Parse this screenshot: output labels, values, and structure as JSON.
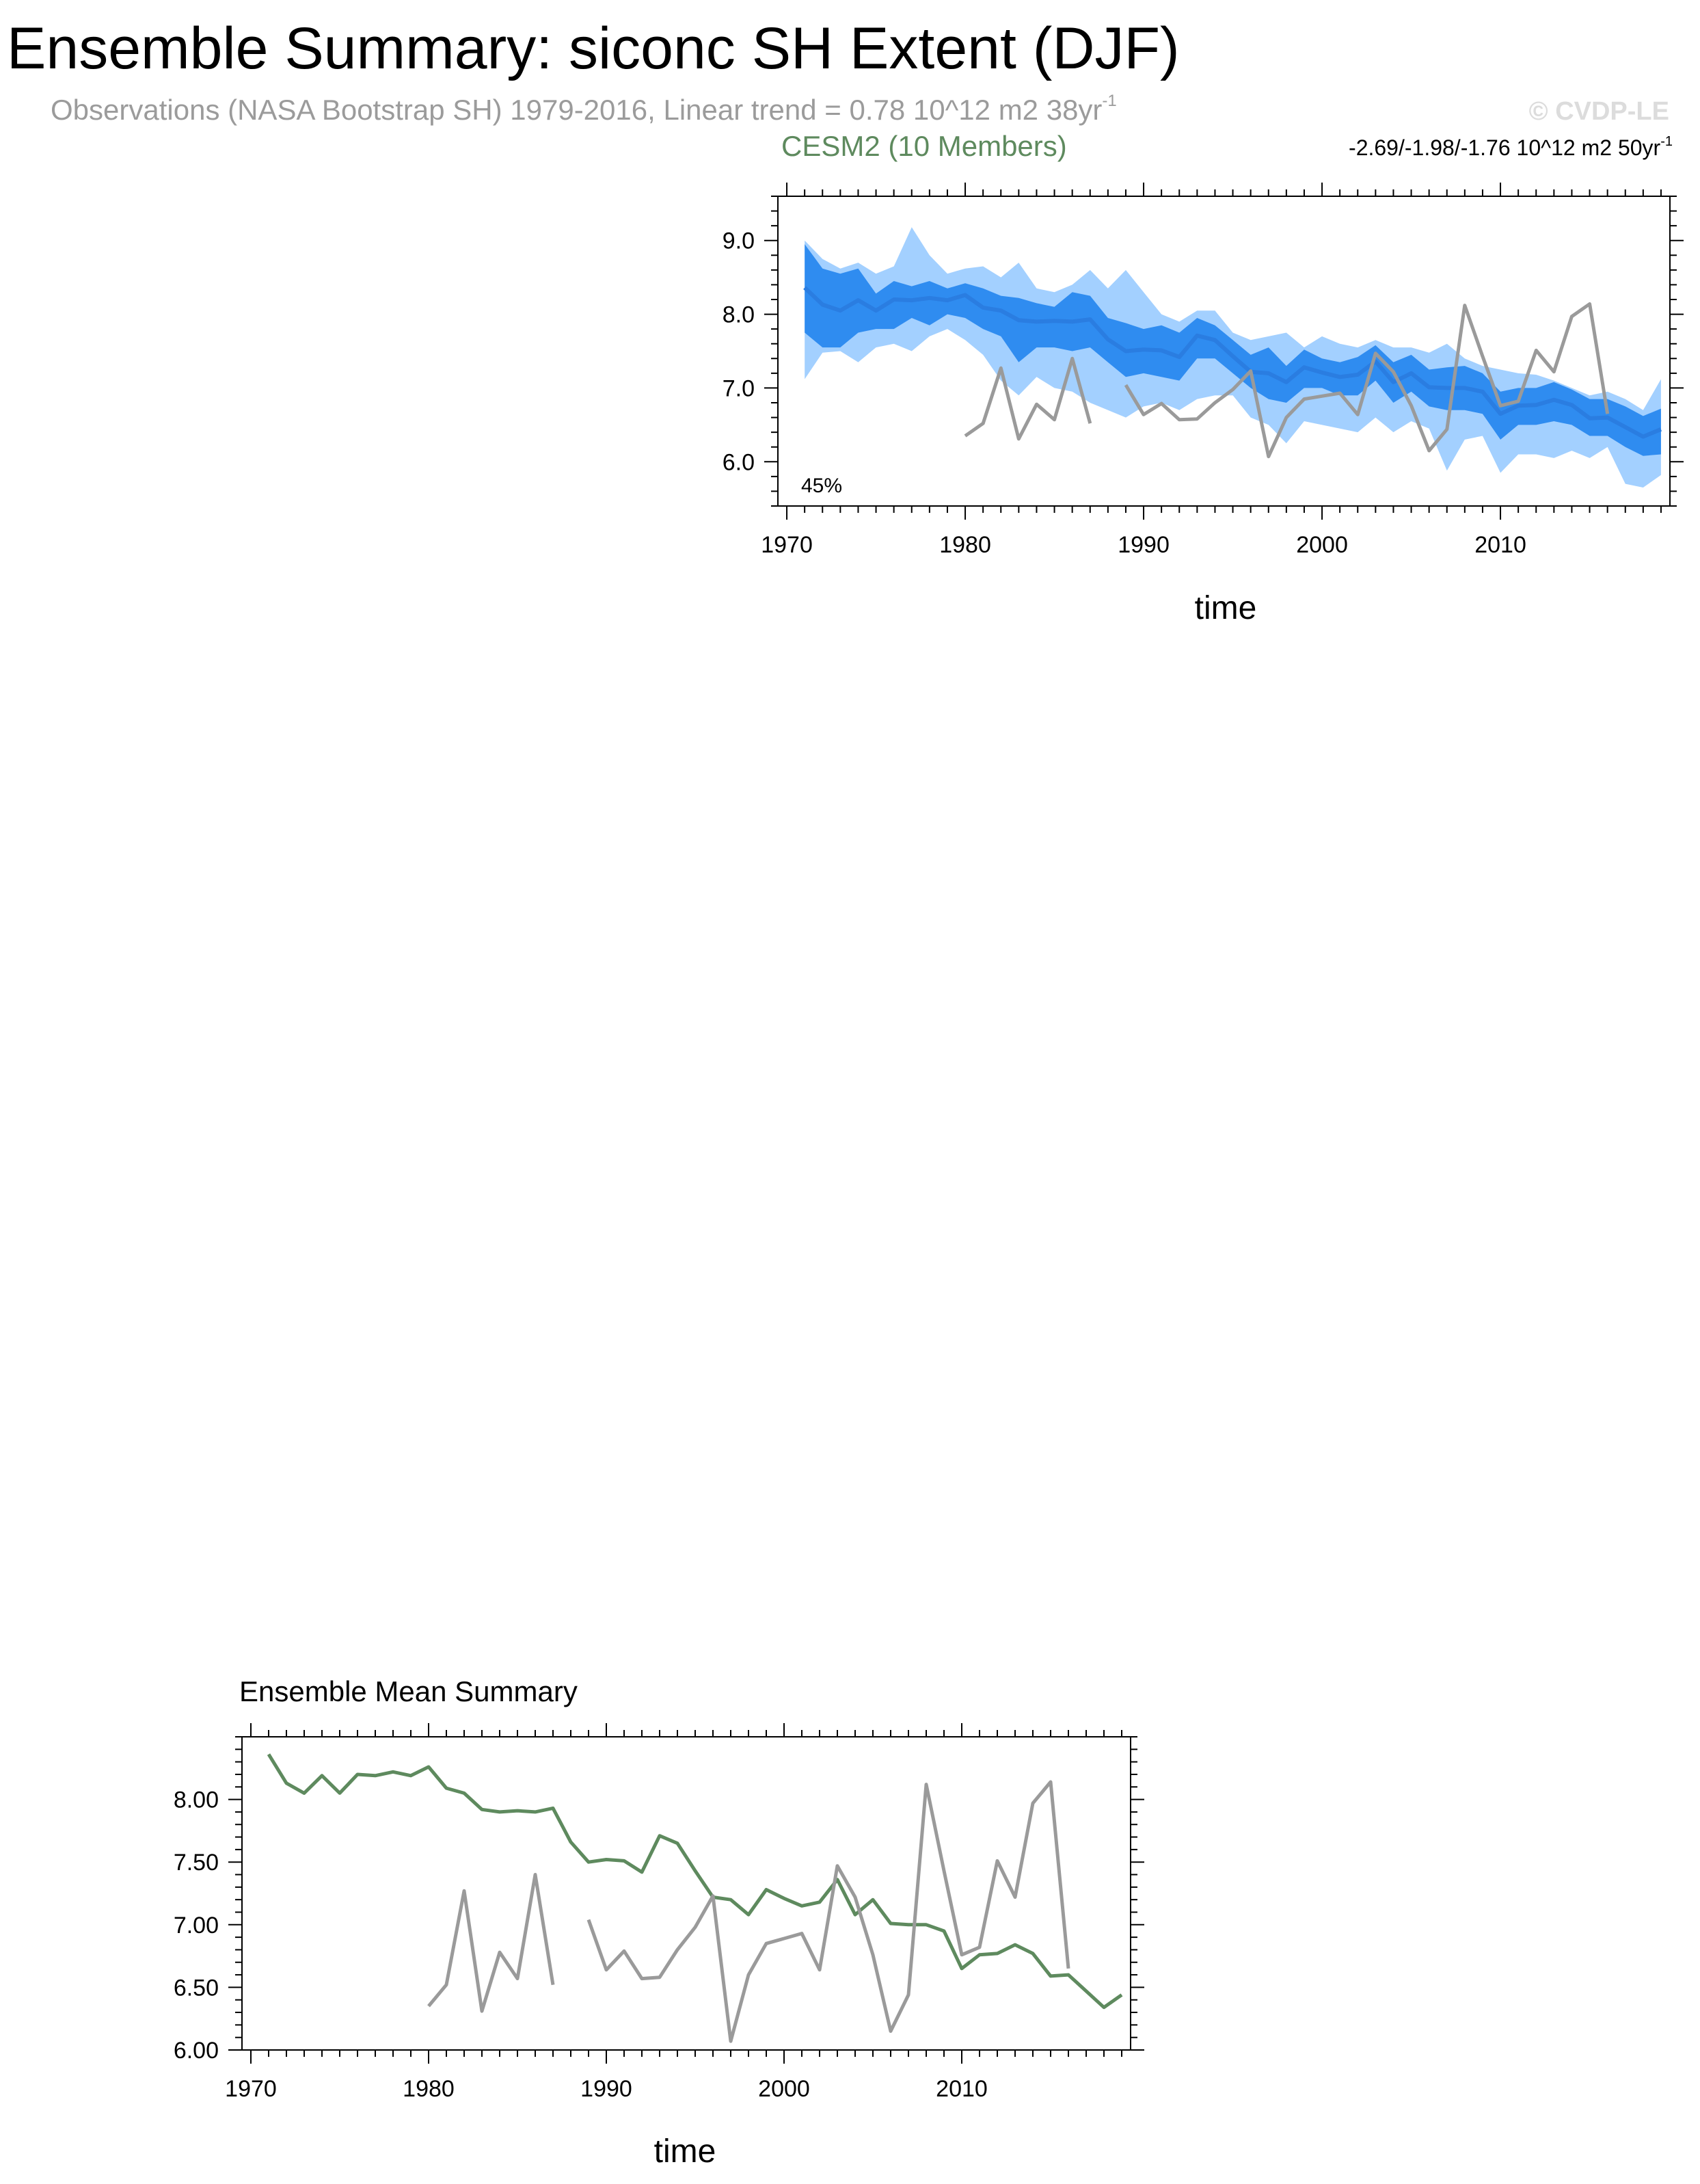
{
  "header": {
    "title": "Ensemble Summary: siconc SH Extent (DJF)",
    "obs_text": "Observations (NASA Bootstrap SH) 1979-2016, Linear trend = 0.78 10^12 m2 38yr",
    "obs_sup": "-1",
    "copyright": "© CVDP-LE"
  },
  "chart_data": [
    {
      "type": "area",
      "title": "CESM2 (10 Members)",
      "trend_text": "-2.69/-1.98/-1.76 10^12 m2 50yr",
      "trend_sup": "-1",
      "percent_label": "45%",
      "xlabel": "time",
      "xlim": [
        1969.5,
        2019.5
      ],
      "ylim": [
        5.4,
        9.6
      ],
      "xticks": [
        1970,
        1980,
        1990,
        2000,
        2010
      ],
      "yticks": [
        6.0,
        7.0,
        8.0,
        9.0
      ],
      "ytick_labels": [
        "6.0",
        "7.0",
        "8.0",
        "9.0"
      ],
      "colors": {
        "outer_band": "#a3d0ff",
        "inner_band": "#2f8cf0",
        "mean": "#2a7de1",
        "obs": "#9a9a9a"
      },
      "x": [
        1971,
        1972,
        1973,
        1974,
        1975,
        1976,
        1977,
        1978,
        1979,
        1980,
        1981,
        1982,
        1983,
        1984,
        1985,
        1986,
        1987,
        1988,
        1989,
        1990,
        1991,
        1992,
        1993,
        1994,
        1995,
        1996,
        1997,
        1998,
        1999,
        2000,
        2001,
        2002,
        2003,
        2004,
        2005,
        2006,
        2007,
        2008,
        2009,
        2010,
        2011,
        2012,
        2013,
        2014,
        2015,
        2016,
        2017,
        2018,
        2019
      ],
      "ensemble_mean": [
        8.36,
        8.13,
        8.05,
        8.19,
        8.05,
        8.2,
        8.19,
        8.22,
        8.19,
        8.26,
        8.09,
        8.05,
        7.92,
        7.9,
        7.91,
        7.9,
        7.93,
        7.66,
        7.5,
        7.52,
        7.51,
        7.42,
        7.71,
        7.65,
        7.43,
        7.22,
        7.2,
        7.08,
        7.28,
        7.21,
        7.15,
        7.18,
        7.36,
        7.08,
        7.2,
        7.01,
        7.0,
        7.0,
        6.95,
        6.65,
        6.76,
        6.77,
        6.84,
        6.77,
        6.59,
        6.6,
        6.47,
        6.34,
        6.44
      ],
      "inner_upper": [
        8.95,
        8.62,
        8.55,
        8.62,
        8.28,
        8.45,
        8.38,
        8.45,
        8.35,
        8.42,
        8.35,
        8.25,
        8.22,
        8.15,
        8.1,
        8.3,
        8.25,
        7.95,
        7.88,
        7.8,
        7.85,
        7.75,
        7.95,
        7.85,
        7.65,
        7.45,
        7.55,
        7.3,
        7.52,
        7.4,
        7.35,
        7.42,
        7.58,
        7.35,
        7.45,
        7.25,
        7.28,
        7.3,
        7.2,
        6.95,
        7.0,
        7.0,
        7.08,
        6.98,
        6.85,
        6.85,
        6.75,
        6.62,
        6.72
      ],
      "inner_lower": [
        7.75,
        7.55,
        7.55,
        7.75,
        7.8,
        7.8,
        7.95,
        7.85,
        8.0,
        7.95,
        7.8,
        7.7,
        7.35,
        7.55,
        7.55,
        7.5,
        7.55,
        7.35,
        7.15,
        7.2,
        7.15,
        7.1,
        7.4,
        7.4,
        7.2,
        7.0,
        6.85,
        6.8,
        7.0,
        7.0,
        6.9,
        6.9,
        7.1,
        6.8,
        6.95,
        6.75,
        6.7,
        6.7,
        6.65,
        6.3,
        6.5,
        6.5,
        6.55,
        6.5,
        6.35,
        6.35,
        6.2,
        6.08,
        6.1
      ],
      "outer_upper": [
        9.0,
        8.75,
        8.62,
        8.7,
        8.55,
        8.65,
        9.18,
        8.8,
        8.55,
        8.62,
        8.65,
        8.5,
        8.7,
        8.35,
        8.3,
        8.4,
        8.6,
        8.35,
        8.6,
        8.3,
        8.0,
        7.9,
        8.05,
        8.05,
        7.75,
        7.65,
        7.7,
        7.75,
        7.55,
        7.7,
        7.6,
        7.55,
        7.65,
        7.55,
        7.55,
        7.48,
        7.6,
        7.4,
        7.3,
        7.25,
        7.2,
        7.18,
        7.1,
        7.0,
        6.9,
        6.95,
        6.85,
        6.7,
        7.12
      ],
      "outer_lower": [
        7.12,
        7.48,
        7.5,
        7.35,
        7.55,
        7.6,
        7.5,
        7.7,
        7.8,
        7.65,
        7.45,
        7.1,
        6.9,
        7.15,
        7.0,
        6.95,
        6.8,
        6.7,
        6.6,
        6.75,
        6.8,
        6.7,
        6.85,
        6.9,
        6.9,
        6.6,
        6.5,
        6.25,
        6.55,
        6.5,
        6.45,
        6.4,
        6.6,
        6.4,
        6.55,
        6.45,
        5.88,
        6.3,
        6.35,
        5.85,
        6.1,
        6.1,
        6.05,
        6.15,
        6.05,
        6.2,
        5.7,
        5.65,
        5.82
      ],
      "obs_x": [
        1980,
        1981,
        1982,
        1983,
        1984,
        1985,
        1986,
        1987,
        1988,
        1989,
        1990,
        1991,
        1992,
        1993,
        1994,
        1995,
        1996,
        1997,
        1998,
        1999,
        2000,
        2001,
        2002,
        2003,
        2004,
        2005,
        2006,
        2007,
        2008,
        2009,
        2010,
        2011,
        2012,
        2013,
        2014,
        2015,
        2016
      ],
      "obs_values": [
        6.35,
        6.52,
        7.27,
        6.31,
        6.78,
        6.57,
        7.4,
        6.52,
        null,
        7.04,
        6.64,
        6.79,
        6.57,
        6.58,
        6.8,
        6.98,
        7.23,
        6.07,
        6.6,
        6.85,
        6.89,
        6.93,
        6.64,
        7.47,
        7.22,
        6.76,
        6.15,
        6.44,
        8.12,
        7.43,
        6.76,
        6.82,
        7.51,
        7.22,
        7.97,
        8.14,
        6.65
      ]
    },
    {
      "type": "line",
      "title": "Ensemble Mean Summary",
      "xlabel": "time",
      "xlim": [
        1969.5,
        2019.5
      ],
      "ylim": [
        6.0,
        8.5
      ],
      "xticks": [
        1970,
        1980,
        1990,
        2000,
        2010
      ],
      "yticks": [
        6.0,
        6.5,
        7.0,
        7.5,
        8.0
      ],
      "ytick_labels": [
        "6.00",
        "6.50",
        "7.00",
        "7.50",
        "8.00"
      ],
      "colors": {
        "mean": "#5e8a5e",
        "obs": "#9a9a9a"
      },
      "x": [
        1971,
        1972,
        1973,
        1974,
        1975,
        1976,
        1977,
        1978,
        1979,
        1980,
        1981,
        1982,
        1983,
        1984,
        1985,
        1986,
        1987,
        1988,
        1989,
        1990,
        1991,
        1992,
        1993,
        1994,
        1995,
        1996,
        1997,
        1998,
        1999,
        2000,
        2001,
        2002,
        2003,
        2004,
        2005,
        2006,
        2007,
        2008,
        2009,
        2010,
        2011,
        2012,
        2013,
        2014,
        2015,
        2016,
        2017,
        2018,
        2019
      ],
      "ensemble_mean": [
        8.36,
        8.13,
        8.05,
        8.19,
        8.05,
        8.2,
        8.19,
        8.22,
        8.19,
        8.26,
        8.09,
        8.05,
        7.92,
        7.9,
        7.91,
        7.9,
        7.93,
        7.66,
        7.5,
        7.52,
        7.51,
        7.42,
        7.71,
        7.65,
        7.43,
        7.22,
        7.2,
        7.08,
        7.28,
        7.21,
        7.15,
        7.18,
        7.36,
        7.08,
        7.2,
        7.01,
        7.0,
        7.0,
        6.95,
        6.65,
        6.76,
        6.77,
        6.84,
        6.77,
        6.59,
        6.6,
        6.47,
        6.34,
        6.44
      ],
      "obs_x": [
        1980,
        1981,
        1982,
        1983,
        1984,
        1985,
        1986,
        1987,
        1988,
        1989,
        1990,
        1991,
        1992,
        1993,
        1994,
        1995,
        1996,
        1997,
        1998,
        1999,
        2000,
        2001,
        2002,
        2003,
        2004,
        2005,
        2006,
        2007,
        2008,
        2009,
        2010,
        2011,
        2012,
        2013,
        2014,
        2015,
        2016
      ],
      "obs_values": [
        6.35,
        6.52,
        7.27,
        6.31,
        6.78,
        6.57,
        7.4,
        6.52,
        null,
        7.04,
        6.64,
        6.79,
        6.57,
        6.58,
        6.8,
        6.98,
        7.23,
        6.07,
        6.6,
        6.85,
        6.89,
        6.93,
        6.64,
        7.47,
        7.22,
        6.76,
        6.15,
        6.44,
        8.12,
        7.43,
        6.76,
        6.82,
        7.51,
        7.22,
        7.97,
        8.14,
        6.65
      ]
    }
  ]
}
